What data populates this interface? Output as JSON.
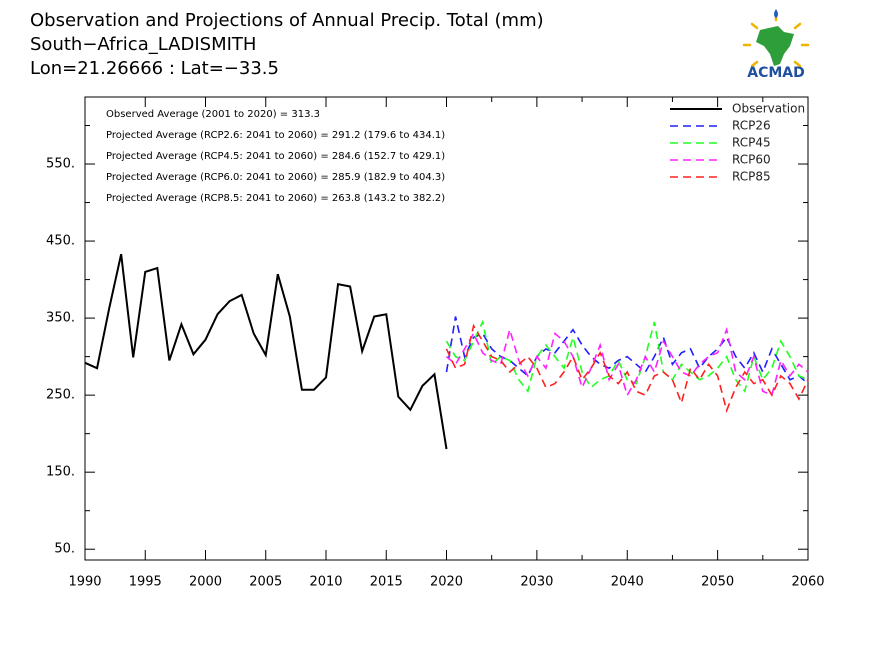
{
  "chart_data": {
    "type": "line",
    "title": "Observation and Projections of Annual Precip. Total (mm)",
    "subtitle": [
      "South−Africa_LADISMITH",
      "Lon=21.26666 : Lat=−33.5"
    ],
    "logo": "ACMAD",
    "annotations": [
      "Observed Average (2001 to 2020) = 313.3",
      "Projected Average (RCP2.6: 2041 to 2060) =  291.2 (179.6 to 434.1)",
      "Projected Average (RCP4.5: 2041 to 2060) =  284.6 (152.7 to 429.1)",
      "Projected Average (RCP6.0: 2041 to 2060) =  285.9 (182.9 to 404.3)",
      "Projected Average (RCP8.5: 2041 to 2060) =  263.8 (143.2 to 382.2)"
    ],
    "legend": "upper right",
    "xlim": [
      1990,
      2060
    ],
    "xticks": [
      1990,
      1995,
      2000,
      2005,
      2010,
      2015,
      2020,
      2030,
      2040,
      2050,
      2060
    ],
    "xminor": [
      2025,
      2035,
      2045,
      2055
    ],
    "ylim": [
      36,
      637
    ],
    "yticks": [
      {
        "value": 50,
        "label": "50."
      },
      {
        "value": 150,
        "label": "150."
      },
      {
        "value": 250,
        "label": "250."
      },
      {
        "value": 350,
        "label": "350."
      },
      {
        "value": 450,
        "label": "450."
      },
      {
        "value": 550,
        "label": "550."
      }
    ],
    "yminor": [
      100,
      200,
      300,
      400,
      500,
      600
    ],
    "series": [
      {
        "name": "Observation",
        "color": "#000000",
        "dashed": false,
        "x": [
          1990,
          1991,
          1992,
          1993,
          1994,
          1995,
          1996,
          1997,
          1998,
          1999,
          2000,
          2001,
          2002,
          2003,
          2004,
          2005,
          2006,
          2007,
          2008,
          2009,
          2010,
          2011,
          2012,
          2013,
          2014,
          2015,
          2016,
          2017,
          2018,
          2019,
          2020
        ],
        "values": [
          292,
          285,
          362,
          433,
          299,
          410,
          415,
          295,
          342,
          303,
          322,
          355,
          372,
          380,
          330,
          302,
          407,
          352,
          257,
          257,
          273,
          394,
          391,
          307,
          352,
          355,
          248,
          231,
          262,
          277,
          180
        ]
      },
      {
        "name": "RCP26",
        "color": "#2020ff",
        "dashed": true,
        "x": [
          2020,
          2021,
          2022,
          2023,
          2024,
          2025,
          2026,
          2027,
          2028,
          2029,
          2030,
          2031,
          2032,
          2033,
          2034,
          2035,
          2036,
          2037,
          2038,
          2039,
          2040,
          2041,
          2042,
          2043,
          2044,
          2045,
          2046,
          2047,
          2048,
          2049,
          2050,
          2051,
          2052,
          2053,
          2054,
          2055,
          2056,
          2057,
          2058,
          2059,
          2060
        ],
        "values": [
          280,
          352,
          300,
          325,
          330,
          310,
          300,
          295,
          285,
          275,
          300,
          310,
          305,
          320,
          335,
          315,
          300,
          290,
          285,
          295,
          300,
          290,
          280,
          300,
          325,
          290,
          305,
          310,
          285,
          300,
          310,
          325,
          300,
          285,
          305,
          280,
          310,
          290,
          270,
          275,
          265
        ]
      },
      {
        "name": "RCP45",
        "color": "#20ff20",
        "dashed": true,
        "x": [
          2020,
          2021,
          2022,
          2023,
          2024,
          2025,
          2026,
          2027,
          2028,
          2029,
          2030,
          2031,
          2032,
          2033,
          2034,
          2035,
          2036,
          2037,
          2038,
          2039,
          2040,
          2041,
          2042,
          2043,
          2044,
          2045,
          2046,
          2047,
          2048,
          2049,
          2050,
          2051,
          2052,
          2053,
          2054,
          2055,
          2056,
          2057,
          2058,
          2059,
          2060
        ],
        "values": [
          320,
          300,
          295,
          320,
          345,
          290,
          300,
          295,
          270,
          255,
          300,
          315,
          300,
          285,
          325,
          280,
          260,
          270,
          275,
          295,
          270,
          265,
          300,
          345,
          280,
          270,
          290,
          280,
          270,
          275,
          285,
          300,
          270,
          255,
          300,
          270,
          285,
          320,
          300,
          275,
          270
        ]
      },
      {
        "name": "RCP60",
        "color": "#ff20ff",
        "dashed": true,
        "x": [
          2020,
          2021,
          2022,
          2023,
          2024,
          2025,
          2026,
          2027,
          2028,
          2029,
          2030,
          2031,
          2032,
          2033,
          2034,
          2035,
          2036,
          2037,
          2038,
          2039,
          2040,
          2041,
          2042,
          2043,
          2044,
          2045,
          2046,
          2047,
          2048,
          2049,
          2050,
          2051,
          2052,
          2053,
          2054,
          2055,
          2056,
          2057,
          2058,
          2059,
          2060
        ],
        "values": [
          300,
          290,
          310,
          330,
          305,
          295,
          290,
          335,
          295,
          275,
          300,
          285,
          330,
          320,
          300,
          260,
          285,
          315,
          270,
          290,
          250,
          270,
          300,
          280,
          320,
          300,
          280,
          275,
          290,
          300,
          305,
          335,
          280,
          270,
          300,
          255,
          250,
          295,
          275,
          290,
          280
        ]
      },
      {
        "name": "RCP85",
        "color": "#ff2020",
        "dashed": true,
        "x": [
          2020,
          2021,
          2022,
          2023,
          2024,
          2025,
          2026,
          2027,
          2028,
          2029,
          2030,
          2031,
          2032,
          2033,
          2034,
          2035,
          2036,
          2037,
          2038,
          2039,
          2040,
          2041,
          2042,
          2043,
          2044,
          2045,
          2046,
          2047,
          2048,
          2049,
          2050,
          2051,
          2052,
          2053,
          2054,
          2055,
          2056,
          2057,
          2058,
          2059,
          2060
        ],
        "values": [
          310,
          285,
          290,
          340,
          320,
          300,
          295,
          280,
          290,
          300,
          285,
          260,
          265,
          280,
          300,
          270,
          285,
          305,
          275,
          265,
          280,
          255,
          250,
          275,
          280,
          270,
          240,
          285,
          270,
          290,
          275,
          230,
          260,
          280,
          265,
          270,
          250,
          275,
          265,
          245,
          270
        ]
      }
    ]
  }
}
